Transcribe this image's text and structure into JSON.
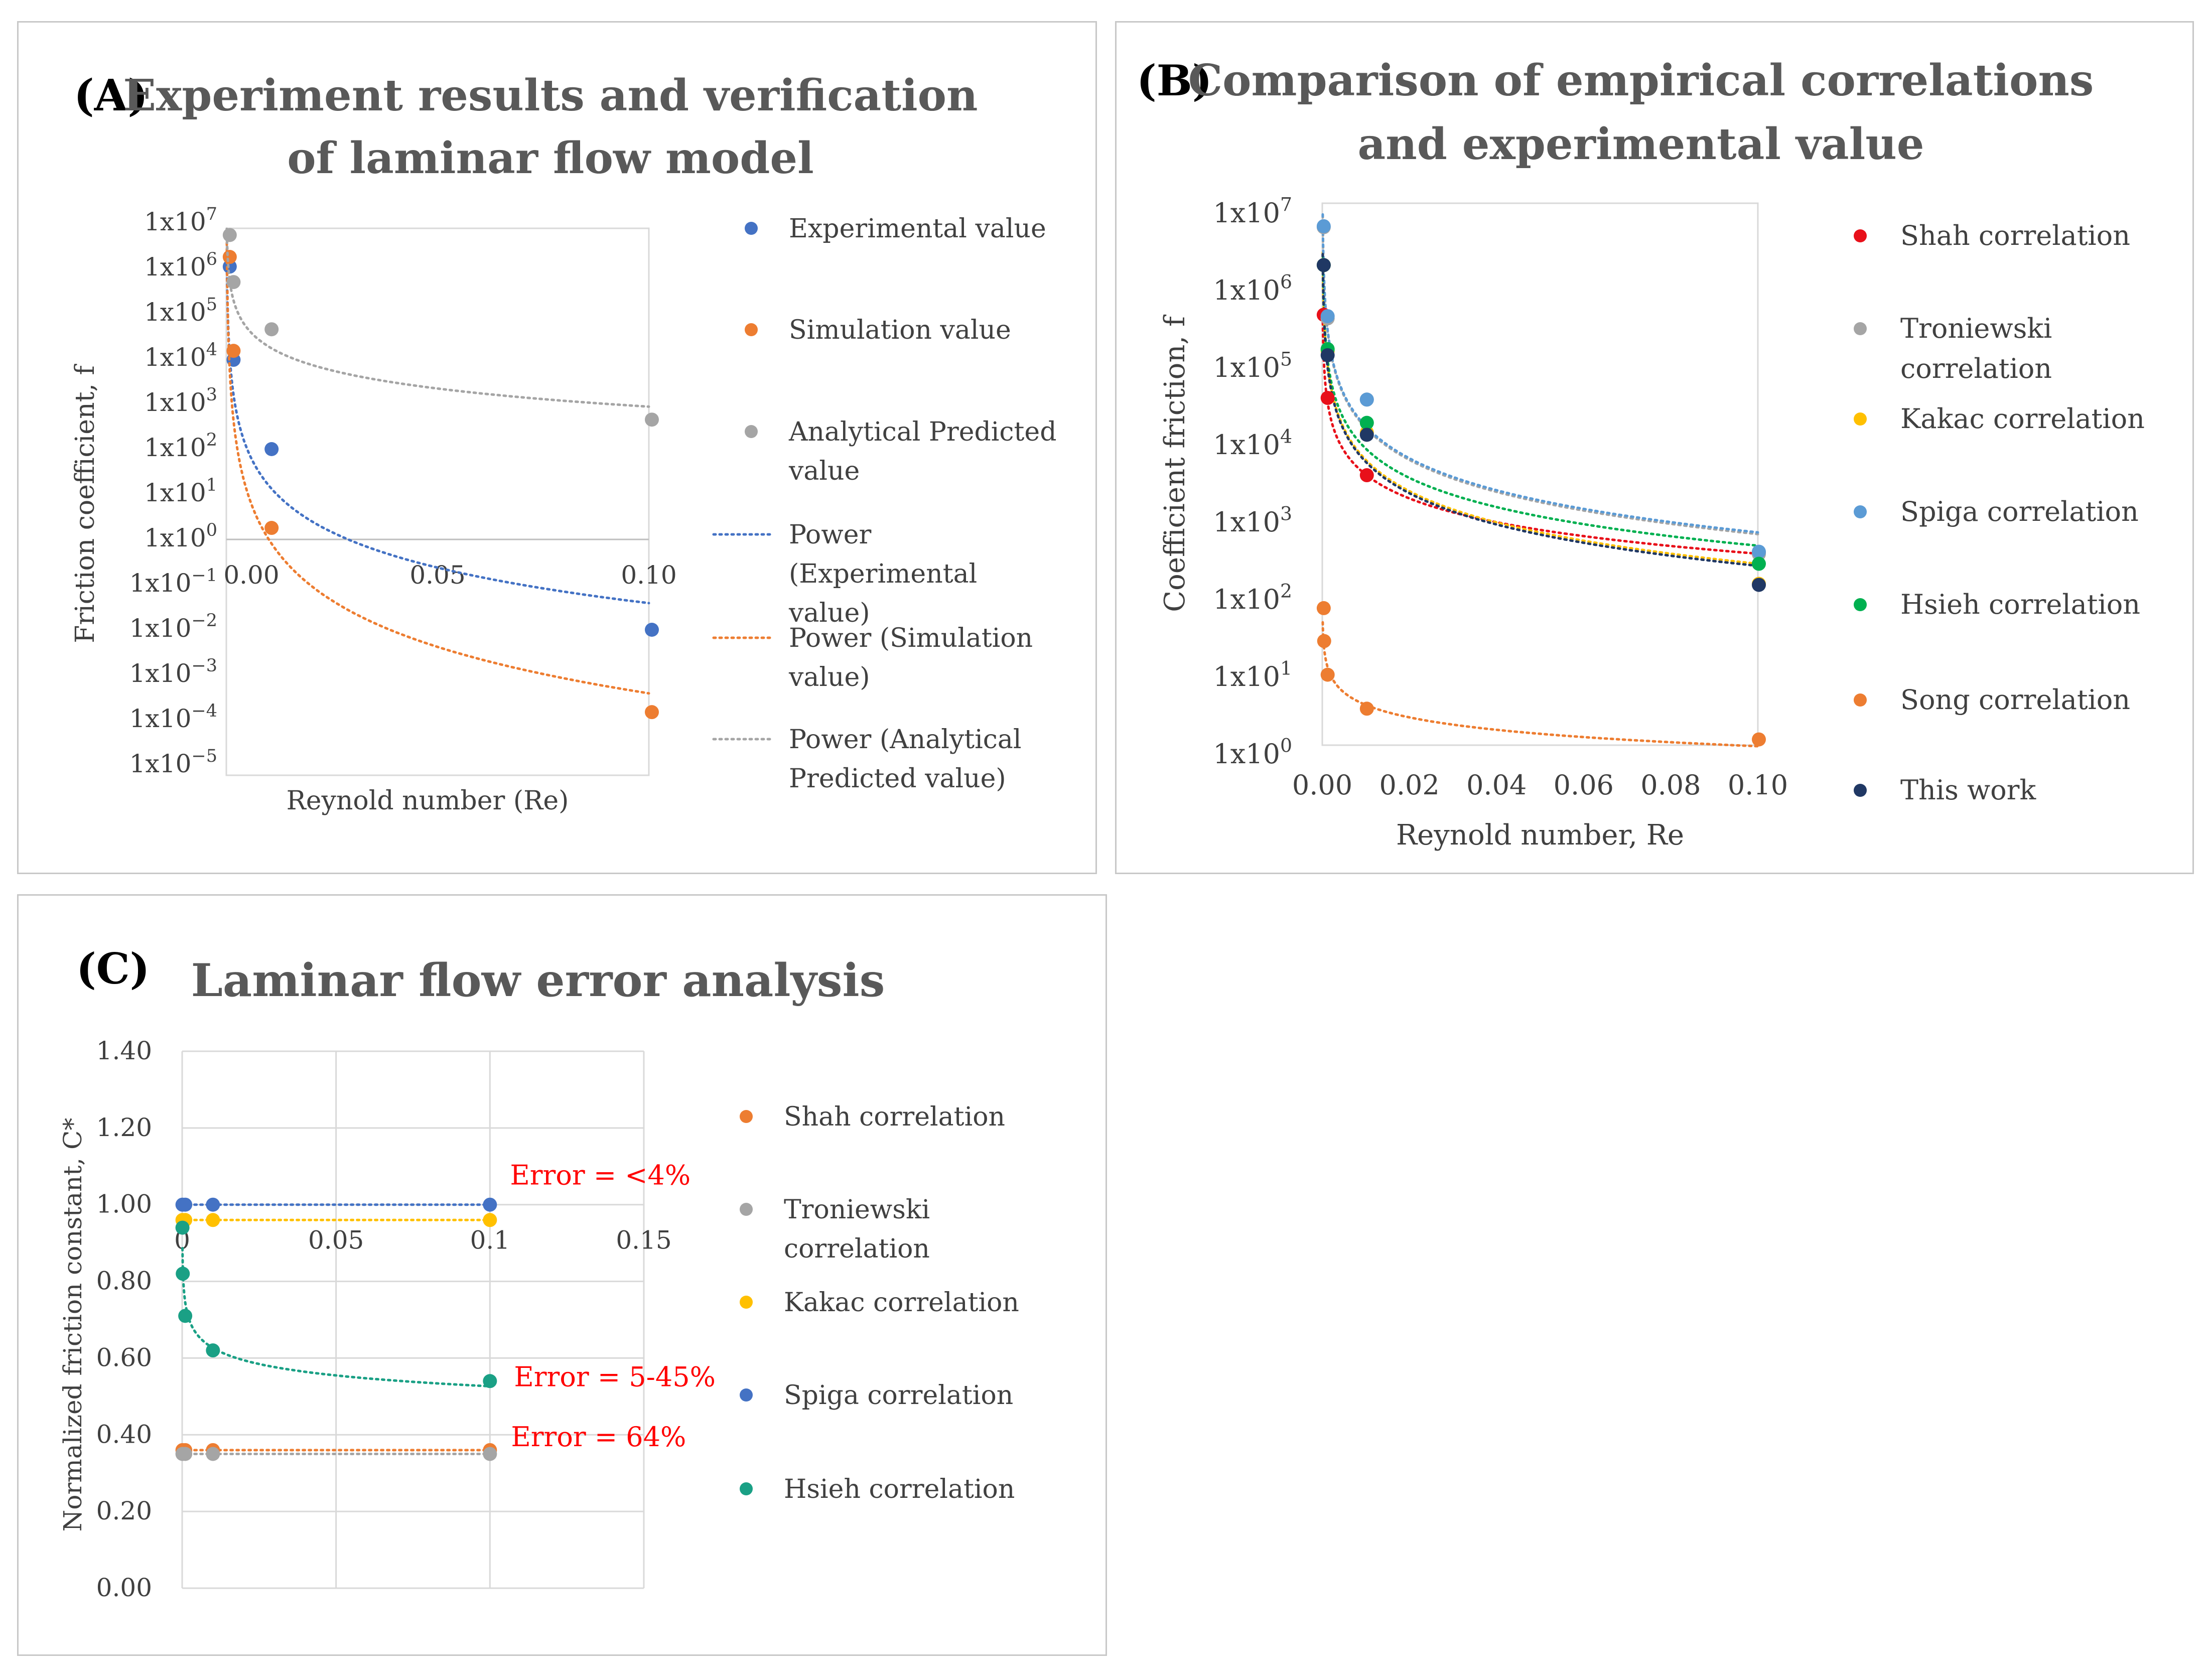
{
  "chart_data": [
    {
      "panel_label": "(A)",
      "type": "scatter",
      "title_line1": "Experiment results and verification",
      "title_line2": "of laminar flow model",
      "xlabel": "Reynold number (Re)",
      "ylabel": "Friction coefficient, f",
      "xlim": [
        0,
        0.1
      ],
      "ylim_log10": [
        -5,
        7
      ],
      "x_ticks": [
        "0.00",
        "0.05",
        "0.10"
      ],
      "y_ticks": [
        {
          "base": "1x10",
          "exp": "7"
        },
        {
          "base": "1x10",
          "exp": "6"
        },
        {
          "base": "1x10",
          "exp": "5"
        },
        {
          "base": "1x10",
          "exp": "4"
        },
        {
          "base": "1x10",
          "exp": "3"
        },
        {
          "base": "1x10",
          "exp": "2"
        },
        {
          "base": "1x10",
          "exp": "1"
        },
        {
          "base": "1x10",
          "exp": "0"
        },
        {
          "base": "1x10",
          "exp": "−1"
        },
        {
          "base": "1x10",
          "exp": "−2"
        },
        {
          "base": "1x10",
          "exp": "−3"
        },
        {
          "base": "1x10",
          "exp": "−4"
        },
        {
          "base": "1x10",
          "exp": "−5"
        }
      ],
      "series": [
        {
          "name": "Experimental value",
          "color": "#4472c4",
          "x": [
            0.0001,
            0.001,
            0.01,
            0.1
          ],
          "y": [
            1100000,
            9500,
            100,
            0.01
          ],
          "trend": "Power (Experimental value)",
          "trend_lines": [
            "Power",
            "(Experimental",
            "value)"
          ]
        },
        {
          "name": "Simulation value",
          "color": "#ed7d31",
          "x": [
            0.0001,
            0.001,
            0.01,
            0.1
          ],
          "y": [
            1800000,
            15000,
            1.8,
            0.00015
          ],
          "trend": "Power (Simulation value)",
          "trend_lines": [
            "Power (Simulation",
            "value)"
          ]
        },
        {
          "name": "Analytical Predicted value",
          "color": "#a5a5a5",
          "x": [
            0.0001,
            0.001,
            0.01,
            0.1
          ],
          "y": [
            5500000,
            500000,
            45000,
            450
          ],
          "trend": "Power (Analytical Predicted value)",
          "trend_lines": [
            "Power (Analytical",
            "Predicted value)"
          ]
        }
      ],
      "legend_markers": [
        [
          "Experimental value"
        ],
        [
          "Simulation value"
        ],
        [
          "Analytical Predicted",
          "value"
        ]
      ]
    },
    {
      "panel_label": "(B)",
      "type": "scatter",
      "title_line1": "Comparison of empirical correlations",
      "title_line2": "and experimental value",
      "xlabel": "Reynold number, Re",
      "ylabel": "Coefficient friction, f",
      "xlim": [
        0,
        0.1
      ],
      "ylim_log10": [
        -0.3,
        7.2
      ],
      "x_ticks": [
        "0.00",
        "0.02",
        "0.04",
        "0.06",
        "0.08",
        "0.10"
      ],
      "y_ticks": [
        {
          "base": "1x10",
          "exp": "7"
        },
        {
          "base": "1x10",
          "exp": "6"
        },
        {
          "base": "1x10",
          "exp": "5"
        },
        {
          "base": "1x10",
          "exp": "4"
        },
        {
          "base": "1x10",
          "exp": "3"
        },
        {
          "base": "1x10",
          "exp": "2"
        },
        {
          "base": "1x10",
          "exp": "1"
        },
        {
          "base": "1x10",
          "exp": "0"
        }
      ],
      "series": [
        {
          "name": "Shah correlation",
          "legend_lines": [
            "Shah correlation"
          ],
          "color": "#e8101a",
          "x": [
            0.0001,
            0.001,
            0.01,
            0.1
          ],
          "y": [
            500000,
            42000,
            4200,
            420
          ]
        },
        {
          "name": "Troniewski correlation",
          "legend_lines": [
            "Troniewski",
            "correlation"
          ],
          "color": "#a5a5a5",
          "x": [
            0.0001,
            0.001,
            0.01,
            0.1
          ],
          "y": [
            6800000,
            450000,
            40000,
            400
          ]
        },
        {
          "name": "Kakac correlation",
          "legend_lines": [
            "Kakac correlation"
          ],
          "color": "#ffc000",
          "x": [
            0.0001,
            0.001,
            0.01,
            0.1
          ],
          "y": [
            2200000,
            170000,
            15000,
            165
          ]
        },
        {
          "name": "Spiga correlation",
          "legend_lines": [
            "Spiga correlation"
          ],
          "color": "#5b9bd5",
          "x": [
            0.0001,
            0.001,
            0.01,
            0.1
          ],
          "y": [
            7000000,
            480000,
            40000,
            430
          ]
        },
        {
          "name": "Hsieh correlation",
          "legend_lines": [
            "Hsieh correlation"
          ],
          "color": "#00b050",
          "x": [
            0.0001,
            0.001,
            0.01,
            0.1
          ],
          "y": [
            2200000,
            180000,
            20000,
            300
          ]
        },
        {
          "name": "Song correlation",
          "legend_lines": [
            "Song correlation"
          ],
          "color": "#ed7d31",
          "x": [
            0.0001,
            0.0002,
            0.001,
            0.01,
            0.1
          ],
          "y": [
            80,
            30,
            11,
            4,
            1.6
          ]
        },
        {
          "name": "This work",
          "legend_lines": [
            "This work"
          ],
          "color": "#203864",
          "x": [
            0.0001,
            0.001,
            0.01,
            0.1
          ],
          "y": [
            2200000,
            150000,
            14000,
            160
          ]
        }
      ]
    },
    {
      "panel_label": "(C)",
      "type": "scatter",
      "title": "Laminar flow error analysis",
      "xlabel": "",
      "ylabel": "Normalized friction constant, C*",
      "xlim": [
        0,
        0.15
      ],
      "ylim": [
        0,
        1.4
      ],
      "x_ticks": [
        "0",
        "0.05",
        "0.1",
        "0.15"
      ],
      "y_ticks": [
        "1.40",
        "1.20",
        "1.00",
        "0.80",
        "0.60",
        "0.40",
        "0.20",
        "0.00"
      ],
      "series": [
        {
          "name": "Shah correlation",
          "legend_lines": [
            "Shah correlation"
          ],
          "color": "#ed7d31",
          "x": [
            0.0001,
            0.001,
            0.01,
            0.1
          ],
          "y": [
            0.36,
            0.36,
            0.36,
            0.36
          ]
        },
        {
          "name": "Troniewski correlation",
          "legend_lines": [
            "Troniewski",
            "correlation"
          ],
          "color": "#a5a5a5",
          "x": [
            0.0001,
            0.001,
            0.01,
            0.1
          ],
          "y": [
            0.35,
            0.35,
            0.35,
            0.35
          ]
        },
        {
          "name": "Kakac correlation",
          "legend_lines": [
            "Kakac correlation"
          ],
          "color": "#ffc000",
          "x": [
            0.0001,
            0.001,
            0.01,
            0.1
          ],
          "y": [
            0.96,
            0.96,
            0.96,
            0.96
          ]
        },
        {
          "name": "Spiga correlation",
          "legend_lines": [
            "Spiga correlation"
          ],
          "color": "#4472c4",
          "x": [
            0.0001,
            0.001,
            0.01,
            0.1
          ],
          "y": [
            1.0,
            1.0,
            1.0,
            1.0
          ]
        },
        {
          "name": "Hsieh correlation",
          "legend_lines": [
            "Hsieh correlation"
          ],
          "color": "#1aa085",
          "x": [
            0.0001,
            0.0002,
            0.001,
            0.01,
            0.1
          ],
          "y": [
            0.94,
            0.82,
            0.71,
            0.62,
            0.54
          ]
        }
      ],
      "annotations": [
        {
          "text": "Error = <4%",
          "x": 0.1,
          "y": 1.0
        },
        {
          "text": "Error = 5-45%",
          "x": 0.1,
          "y": 0.54
        },
        {
          "text": "Error = 64%",
          "x": 0.1,
          "y": 0.36
        }
      ],
      "annotation_color": "#ff0000"
    }
  ]
}
